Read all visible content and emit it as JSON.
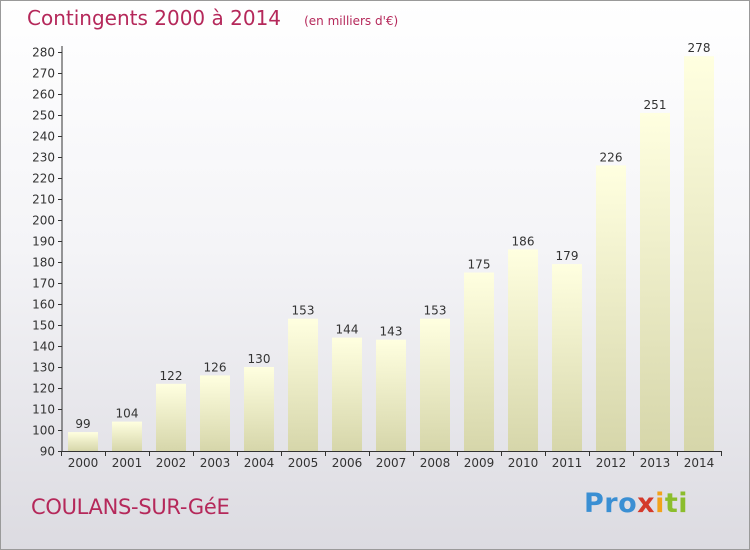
{
  "title": "Contingents 2000 à 2014",
  "unit_note": "(en milliers d'€)",
  "town": "COULANS-SUR-GéE",
  "logo": {
    "p1": "Pro",
    "p2": "x",
    "p3": "i",
    "p4": "ti"
  },
  "colors": {
    "accent": "#b5285a",
    "bar_top": "#ffffe0",
    "bar_bottom": "#d6d6aa"
  },
  "chart_data": {
    "type": "bar",
    "title": "Contingents 2000 à 2014",
    "subtitle": "(en milliers d'€)",
    "categories": [
      "2000",
      "2001",
      "2002",
      "2003",
      "2004",
      "2005",
      "2006",
      "2007",
      "2008",
      "2009",
      "2010",
      "2011",
      "2012",
      "2013",
      "2014"
    ],
    "values": [
      99,
      104,
      122,
      126,
      130,
      153,
      144,
      143,
      153,
      175,
      186,
      179,
      226,
      251,
      278
    ],
    "ylim": [
      90,
      280
    ],
    "ytick_step": 10,
    "grid": false,
    "data_labels": true
  }
}
